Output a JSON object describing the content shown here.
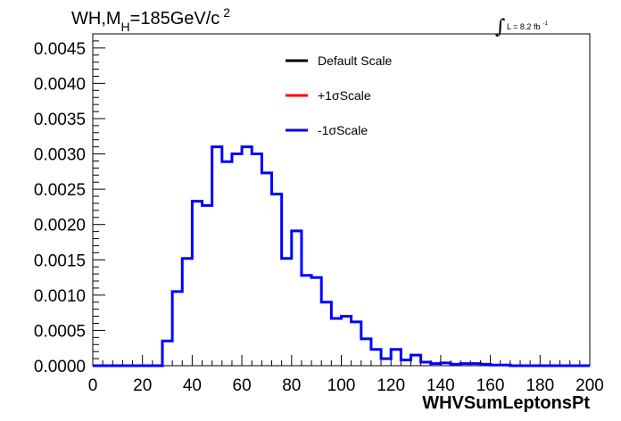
{
  "chart_data": {
    "type": "histogram",
    "title_main": "WH,M",
    "title_sub": "H",
    "title_rest": "=185GeV/c",
    "title_sup": "2",
    "lumi_text": "L = 8.2 fb",
    "lumi_sup": "-1",
    "xlabel": "WHVSumLeptonsPt",
    "ylabel": "",
    "xlim": [
      0,
      200
    ],
    "ylim": [
      0,
      0.0047
    ],
    "x_ticks": [
      "0",
      "20",
      "40",
      "60",
      "80",
      "100",
      "120",
      "140",
      "160",
      "180",
      "200"
    ],
    "y_ticks": [
      "0.0000",
      "0.0005",
      "0.0010",
      "0.0015",
      "0.0020",
      "0.0025",
      "0.0030",
      "0.0035",
      "0.0040",
      "0.0045"
    ],
    "bin_width": 4,
    "bin_edges_start": 0,
    "legend": [
      {
        "name": "Default Scale",
        "color": "#000000"
      },
      {
        "name": "+1σScale",
        "color": "#ff0000"
      },
      {
        "name": "-1σScale",
        "color": "#0000ff"
      }
    ],
    "series": [
      {
        "name": "-1σScale",
        "color": "#0000ff",
        "values": [
          0,
          0,
          0,
          0,
          0,
          0,
          0,
          0.00035,
          0.00105,
          0.00152,
          0.00233,
          0.00227,
          0.0031,
          0.00289,
          0.003,
          0.0031,
          0.003,
          0.00273,
          0.00243,
          0.00152,
          0.00191,
          0.00128,
          0.00125,
          0.0009,
          0.00067,
          0.0007,
          0.00062,
          0.00038,
          0.00023,
          0.0001,
          0.00023,
          8e-05,
          0.00015,
          5e-05,
          3e-05,
          4e-05,
          2e-05,
          3e-05,
          3e-05,
          2e-05,
          1e-05,
          1e-05,
          0,
          0,
          0,
          0,
          0,
          0,
          0,
          0
        ]
      }
    ]
  }
}
